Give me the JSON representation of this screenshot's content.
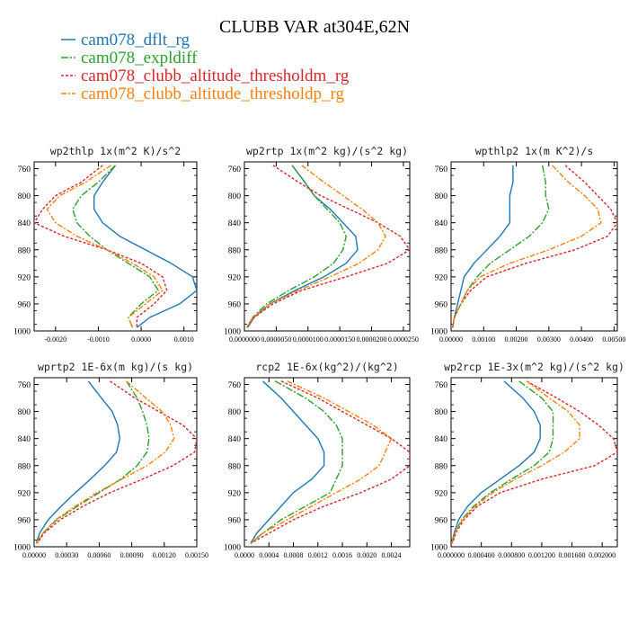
{
  "title": "CLUBB VAR at304E,62N",
  "legend": [
    {
      "name": "cam078_dflt_rg",
      "color": "#1f77b4",
      "dash": ""
    },
    {
      "name": "cam078_expldiff",
      "color": "#2ca02c",
      "dash": "8,2,2,2"
    },
    {
      "name": "cam078_clubb_altitude_thresholdm_rg",
      "color": "#d62728",
      "dash": "3,2"
    },
    {
      "name": "cam078_clubb_altitude_thresholdp_rg",
      "color": "#ff7f0e",
      "dash": "6,2,2,2"
    }
  ],
  "chart_data": [
    {
      "type": "line",
      "title": "wp2thlp  1x(m^2 K)/s^2",
      "ylabel": "",
      "xlabel": "",
      "xlim": [
        -0.0025,
        0.0013
      ],
      "ylim": [
        1000,
        750
      ],
      "y_reversed": true,
      "xticks": [
        -0.002,
        -0.001,
        0.0,
        0.001
      ],
      "xtick_labels": [
        "-0.0020",
        "-0.0010",
        "0.0000",
        "0.0010"
      ],
      "yticks": [
        760,
        800,
        840,
        880,
        920,
        960,
        1000
      ],
      "y": [
        755,
        780,
        800,
        820,
        840,
        860,
        880,
        900,
        920,
        940,
        960,
        980,
        995
      ],
      "series": [
        {
          "x": [
            -0.0006,
            -0.0009,
            -0.0011,
            -0.0011,
            -0.0009,
            -0.0005,
            0.0001,
            0.0007,
            0.0012,
            0.0013,
            0.0009,
            0.0002,
            -0.0001
          ]
        },
        {
          "x": [
            -0.0006,
            -0.001,
            -0.0014,
            -0.0016,
            -0.0015,
            -0.0012,
            -0.0008,
            -0.0003,
            0.0002,
            0.0004,
            0.0,
            -0.0003,
            -0.0002
          ]
        },
        {
          "x": [
            -0.0009,
            -0.0014,
            -0.002,
            -0.0023,
            -0.0025,
            -0.0018,
            -0.0008,
            0.0,
            0.0005,
            0.0006,
            0.0003,
            -0.0001,
            -0.0001
          ]
        },
        {
          "x": [
            -0.0007,
            -0.0013,
            -0.0019,
            -0.0022,
            -0.002,
            -0.0015,
            -0.0008,
            -0.0002,
            0.0003,
            0.0005,
            0.0001,
            -0.0003,
            -0.0002
          ]
        }
      ]
    },
    {
      "type": "line",
      "title": "wp2rtp  1x(m^2 kg)/(s^2 kg)",
      "ylabel": "",
      "xlabel": "",
      "xlim": [
        0.0,
        2.6e-05
      ],
      "ylim": [
        1000,
        750
      ],
      "y_reversed": true,
      "xticks": [
        0.0,
        5e-06,
        1e-05,
        1.5e-05,
        2e-05,
        2.5e-05
      ],
      "xtick_labels": [
        "0.0000000",
        "0.0000050",
        "0.0000100",
        "0.0000150",
        "0.0000200",
        "0.0000250"
      ],
      "yticks": [
        760,
        800,
        840,
        880,
        920,
        960,
        1000
      ],
      "y": [
        755,
        780,
        800,
        820,
        840,
        860,
        880,
        900,
        920,
        940,
        960,
        980,
        995
      ],
      "series": [
        {
          "x": [
            7.5e-06,
            9.5e-06,
            1.1e-05,
            1.35e-05,
            1.55e-05,
            1.75e-05,
            1.78e-05,
            1.6e-05,
            1.25e-05,
            8e-06,
            4e-06,
            1.5e-06,
            5e-07
          ]
        },
        {
          "x": [
            7.5e-06,
            9.5e-06,
            1.1e-05,
            1.3e-05,
            1.5e-05,
            1.6e-05,
            1.55e-05,
            1.4e-05,
            1.1e-05,
            7e-06,
            3.5e-06,
            1.3e-06,
            4e-07
          ]
        },
        {
          "x": [
            4.5e-06,
            8.5e-06,
            1.2e-05,
            1.65e-05,
            2.1e-05,
            2.45e-05,
            2.6e-05,
            2.25e-05,
            1.6e-05,
            9e-06,
            4.5e-06,
            1.5e-06,
            5e-07
          ]
        },
        {
          "x": [
            9e-06,
            1.25e-05,
            1.55e-05,
            1.85e-05,
            2.1e-05,
            2.22e-05,
            2.1e-05,
            1.8e-05,
            1.35e-05,
            8.5e-06,
            4e-06,
            1.3e-06,
            4e-07
          ]
        }
      ]
    },
    {
      "type": "line",
      "title": "wpthlp2  1x(m K^2)/s",
      "ylabel": "",
      "xlabel": "",
      "xlim": [
        0.0,
        0.0051
      ],
      "ylim": [
        1000,
        750
      ],
      "y_reversed": true,
      "xticks": [
        0.0,
        0.001,
        0.002,
        0.003,
        0.004,
        0.005
      ],
      "xtick_labels": [
        "0.00000",
        "0.00100",
        "0.00200",
        "0.00300",
        "0.00400",
        "0.00500"
      ],
      "yticks": [
        760,
        800,
        840,
        880,
        920,
        960,
        1000
      ],
      "y": [
        755,
        780,
        800,
        820,
        840,
        860,
        880,
        900,
        920,
        940,
        960,
        980,
        995
      ],
      "series": [
        {
          "x": [
            0.0019,
            0.0019,
            0.0018,
            0.0018,
            0.0018,
            0.0015,
            0.0011,
            0.0007,
            0.0004,
            0.0003,
            0.0002,
            0.0001,
            5e-05
          ]
        },
        {
          "x": [
            0.0028,
            0.0029,
            0.0029,
            0.003,
            0.0028,
            0.0024,
            0.0018,
            0.0012,
            0.0008,
            0.0005,
            0.0003,
            0.0001,
            5e-05
          ]
        },
        {
          "x": [
            0.0035,
            0.0041,
            0.0045,
            0.0049,
            0.0051,
            0.0048,
            0.0038,
            0.0023,
            0.0011,
            0.0006,
            0.0003,
            0.0001,
            5e-05
          ]
        },
        {
          "x": [
            0.0031,
            0.0036,
            0.0041,
            0.0045,
            0.0046,
            0.004,
            0.003,
            0.0018,
            0.0009,
            0.0005,
            0.0003,
            0.0001,
            5e-05
          ]
        }
      ]
    },
    {
      "type": "line",
      "title": "wprtp2  1E-6x(m kg)/(s kg)",
      "ylabel": "",
      "xlabel": "",
      "xlim": [
        0.0,
        0.0015
      ],
      "ylim": [
        1000,
        750
      ],
      "y_reversed": true,
      "xticks": [
        0.0,
        0.0003,
        0.0006,
        0.0009,
        0.0012,
        0.0015
      ],
      "xtick_labels": [
        "0.00000",
        "0.00030",
        "0.00060",
        "0.00090",
        "0.00120",
        "0.00150"
      ],
      "yticks": [
        760,
        800,
        840,
        880,
        920,
        960,
        1000
      ],
      "y": [
        755,
        780,
        800,
        820,
        840,
        860,
        880,
        900,
        920,
        940,
        960,
        980,
        995
      ],
      "series": [
        {
          "x": [
            0.0005,
            0.00062,
            0.00072,
            0.00077,
            0.00079,
            0.00076,
            0.00065,
            0.00052,
            0.00038,
            0.00025,
            0.00013,
            5e-05,
            2e-05
          ]
        },
        {
          "x": [
            0.00085,
            0.00095,
            0.001,
            0.00104,
            0.00106,
            0.00104,
            0.00095,
            0.0008,
            0.0006,
            0.0004,
            0.00021,
            8e-05,
            2e-05
          ]
        },
        {
          "x": [
            0.0007,
            0.00093,
            0.00115,
            0.00137,
            0.0015,
            0.00148,
            0.00128,
            0.001,
            0.0007,
            0.00045,
            0.00024,
            9e-05,
            3e-05
          ]
        },
        {
          "x": [
            0.00085,
            0.00103,
            0.00118,
            0.00126,
            0.00129,
            0.00121,
            0.00104,
            0.00081,
            0.00058,
            0.00038,
            0.0002,
            8e-05,
            2e-05
          ]
        }
      ]
    },
    {
      "type": "line",
      "title": "rcp2  1E-6x(kg^2)/(kg^2)",
      "ylabel": "",
      "xlabel": "",
      "xlim": [
        0.0,
        0.0027
      ],
      "ylim": [
        1000,
        750
      ],
      "y_reversed": true,
      "xticks": [
        0.0,
        0.0004,
        0.0008,
        0.0012,
        0.0016,
        0.002,
        0.0024
      ],
      "xtick_labels": [
        "0.0000",
        "0.0004",
        "0.0008",
        "0.0012",
        "0.0016",
        "0.0020",
        "0.0024"
      ],
      "yticks": [
        760,
        800,
        840,
        880,
        920,
        960,
        1000
      ],
      "y": [
        755,
        780,
        800,
        820,
        840,
        860,
        880,
        900,
        920,
        940,
        960,
        980,
        995
      ],
      "series": [
        {
          "x": [
            0.0003,
            0.0006,
            0.0008,
            0.001,
            0.0012,
            0.0013,
            0.0013,
            0.0011,
            0.0008,
            0.0006,
            0.0004,
            0.0002,
            0.0001
          ]
        },
        {
          "x": [
            0.0005,
            0.001,
            0.0013,
            0.0015,
            0.0016,
            0.0016,
            0.0016,
            0.0015,
            0.0014,
            0.001,
            0.0006,
            0.0003,
            0.0001
          ]
        },
        {
          "x": [
            0.0006,
            0.0012,
            0.0016,
            0.002,
            0.0024,
            0.0027,
            0.0027,
            0.0024,
            0.0019,
            0.0013,
            0.0008,
            0.0004,
            0.0001
          ]
        },
        {
          "x": [
            0.0007,
            0.0013,
            0.0017,
            0.0021,
            0.0024,
            0.0023,
            0.0022,
            0.0019,
            0.0015,
            0.0011,
            0.0007,
            0.0003,
            0.0001
          ]
        }
      ]
    },
    {
      "type": "line",
      "title": "wp2rcp  1E-3x(m^2 kg)/(s^2 kg)",
      "ylabel": "",
      "xlabel": "",
      "xlim": [
        0.0,
        0.0022
      ],
      "ylim": [
        1000,
        750
      ],
      "y_reversed": true,
      "xticks": [
        0.0,
        0.0004,
        0.0008,
        0.0012,
        0.0016,
        0.002
      ],
      "xtick_labels": [
        "0.000000",
        "0.000400",
        "0.000800",
        "0.001200",
        "0.001600",
        "0.002000"
      ],
      "yticks": [
        760,
        800,
        840,
        880,
        920,
        960,
        1000
      ],
      "y": [
        755,
        780,
        800,
        820,
        840,
        860,
        880,
        900,
        920,
        940,
        960,
        980,
        995
      ],
      "series": [
        {
          "x": [
            0.0007,
            0.00095,
            0.0011,
            0.00118,
            0.00118,
            0.0011,
            0.0009,
            0.00065,
            0.0004,
            0.00022,
            0.0001,
            4e-05,
            1e-05
          ]
        },
        {
          "x": [
            0.0009,
            0.0012,
            0.00135,
            0.00135,
            0.00135,
            0.0013,
            0.0011,
            0.0008,
            0.00052,
            0.0003,
            0.00014,
            5e-05,
            1e-05
          ]
        },
        {
          "x": [
            0.001,
            0.0014,
            0.0017,
            0.00195,
            0.00215,
            0.0022,
            0.0019,
            0.0012,
            0.00065,
            0.00035,
            0.00017,
            6e-05,
            2e-05
          ]
        },
        {
          "x": [
            0.001,
            0.0013,
            0.00155,
            0.0017,
            0.0017,
            0.0015,
            0.0012,
            0.00085,
            0.00055,
            0.00032,
            0.00015,
            5e-05,
            1e-05
          ]
        }
      ]
    }
  ]
}
